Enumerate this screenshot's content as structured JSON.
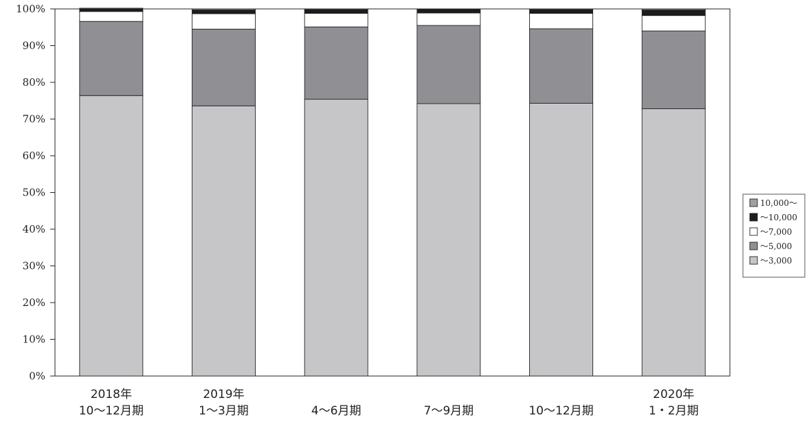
{
  "chart_data": {
    "type": "bar",
    "stacked": true,
    "percent": true,
    "categories": [
      [
        "2018年",
        "10～12月期"
      ],
      [
        "2019年",
        "1～3月期"
      ],
      [
        "",
        "4～6月期"
      ],
      [
        "",
        "7～9月期"
      ],
      [
        "",
        "10～12月期"
      ],
      [
        "2020年",
        "1・2月期"
      ]
    ],
    "series": [
      {
        "name": "～3,000",
        "color": "#c6c6c8",
        "values": [
          76.4,
          73.6,
          75.4,
          74.2,
          74.3,
          72.8
        ]
      },
      {
        "name": "～5,000",
        "color": "#909094",
        "values": [
          20.2,
          20.9,
          19.7,
          21.3,
          20.3,
          21.2
        ]
      },
      {
        "name": "～7,000",
        "color": "#ffffff",
        "values": [
          2.7,
          4.2,
          3.7,
          3.4,
          4.2,
          4.2
        ]
      },
      {
        "name": "～10,000",
        "color": "#1c1c1c",
        "values": [
          0.7,
          1.0,
          1.0,
          1.0,
          1.0,
          1.5
        ]
      },
      {
        "name": "10,000～",
        "color": "#a0a0a4",
        "values": [
          0.2,
          0.3,
          0.2,
          0.1,
          0.2,
          0.3
        ]
      }
    ],
    "ylim": [
      0,
      100
    ],
    "yticks": [
      "0%",
      "10%",
      "20%",
      "30%",
      "40%",
      "50%",
      "60%",
      "70%",
      "80%",
      "90%",
      "100%"
    ],
    "legend_order": [
      "10,000～",
      "～10,000",
      "～7,000",
      "～5,000",
      "～3,000"
    ],
    "legend_position": "right",
    "grid": false
  }
}
